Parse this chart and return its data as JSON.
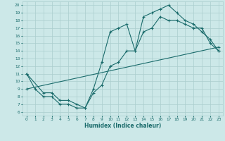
{
  "xlabel": "Humidex (Indice chaleur)",
  "bg_color": "#cce8e8",
  "grid_color": "#aacece",
  "line_color": "#1a6b6b",
  "xlim": [
    -0.5,
    23.5
  ],
  "ylim": [
    5.5,
    20.5
  ],
  "xticks": [
    0,
    1,
    2,
    3,
    4,
    5,
    6,
    7,
    8,
    9,
    10,
    11,
    12,
    13,
    14,
    15,
    16,
    17,
    18,
    19,
    20,
    21,
    22,
    23
  ],
  "yticks": [
    6,
    7,
    8,
    9,
    10,
    11,
    12,
    13,
    14,
    15,
    16,
    17,
    18,
    19,
    20
  ],
  "curve1_x": [
    0,
    1,
    2,
    3,
    4,
    5,
    6,
    7,
    8,
    9,
    10,
    11,
    12,
    13,
    14,
    15,
    16,
    17,
    18,
    19,
    20,
    21,
    22,
    23
  ],
  "curve1_y": [
    11,
    9,
    8,
    8,
    7,
    7,
    6.5,
    6.5,
    9,
    12.5,
    16.5,
    17,
    17.5,
    14,
    18.5,
    19,
    19.5,
    20,
    19,
    18,
    17.5,
    16.5,
    15.5,
    14
  ],
  "curve2_x": [
    0,
    2,
    3,
    4,
    5,
    6,
    7,
    8,
    9,
    10,
    11,
    12,
    13,
    14,
    15,
    16,
    17,
    18,
    19,
    20,
    21,
    22,
    23
  ],
  "curve2_y": [
    11,
    8.5,
    8.5,
    7.5,
    7.5,
    7,
    6.5,
    8.5,
    9.5,
    12,
    12.5,
    14,
    14,
    16.5,
    17,
    18.5,
    18,
    18,
    17.5,
    17,
    17,
    15,
    14
  ],
  "curve3_x": [
    0,
    23
  ],
  "curve3_y": [
    9,
    14.5
  ]
}
